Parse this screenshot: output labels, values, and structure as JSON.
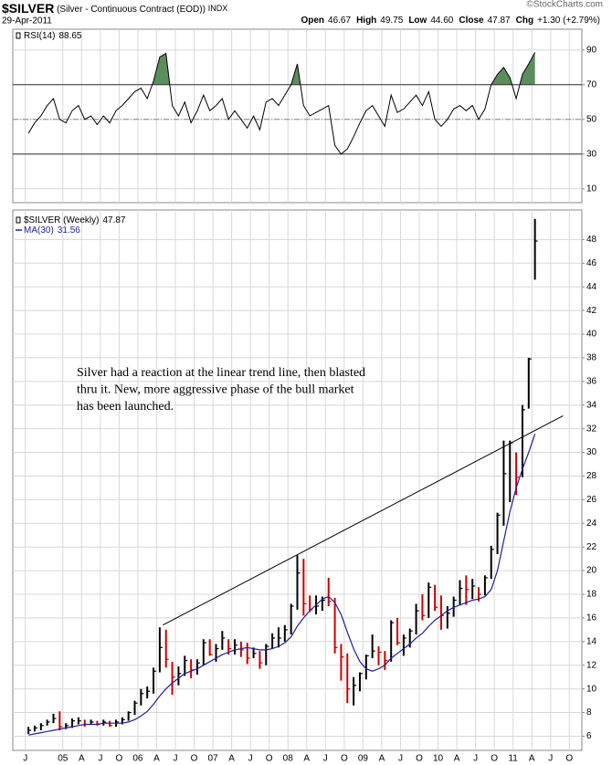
{
  "header": {
    "symbol": "$SILVER",
    "description": "(Silver - Continuous Contract (EOD))",
    "exchange": "INDX",
    "date": "29-Apr-2011",
    "watermark": "©StockCharts.com",
    "stats": [
      {
        "label": "Open",
        "value": "46.67"
      },
      {
        "label": "High",
        "value": "49.75"
      },
      {
        "label": "Low",
        "value": "44.60"
      },
      {
        "label": "Close",
        "value": "47.87"
      },
      {
        "label": "Chg",
        "value": "+1.30 (+2.79%)"
      }
    ]
  },
  "chart_data": [
    {
      "type": "line",
      "x": [
        "2004-07",
        "2004-08",
        "2004-09",
        "2004-10",
        "2004-11",
        "2004-12",
        "2005-01",
        "2005-02",
        "2005-03",
        "2005-04",
        "2005-05",
        "2005-06",
        "2005-07",
        "2005-08",
        "2005-09",
        "2005-10",
        "2005-11",
        "2005-12",
        "2006-01",
        "2006-02",
        "2006-03",
        "2006-04",
        "2006-05",
        "2006-06",
        "2006-07",
        "2006-08",
        "2006-09",
        "2006-10",
        "2006-11",
        "2006-12",
        "2007-01",
        "2007-02",
        "2007-03",
        "2007-04",
        "2007-05",
        "2007-06",
        "2007-07",
        "2007-08",
        "2007-09",
        "2007-10",
        "2007-11",
        "2007-12",
        "2008-01",
        "2008-02",
        "2008-03",
        "2008-04",
        "2008-05",
        "2008-06",
        "2008-07",
        "2008-08",
        "2008-09",
        "2008-10",
        "2008-11",
        "2008-12",
        "2009-01",
        "2009-02",
        "2009-03",
        "2009-04",
        "2009-05",
        "2009-06",
        "2009-07",
        "2009-08",
        "2009-09",
        "2009-10",
        "2009-11",
        "2009-12",
        "2010-01",
        "2010-02",
        "2010-03",
        "2010-04",
        "2010-05",
        "2010-06",
        "2010-07",
        "2010-08",
        "2010-09",
        "2010-10",
        "2010-11",
        "2010-12",
        "2011-01",
        "2011-02",
        "2011-03",
        "2011-04"
      ],
      "series": [
        {
          "name": "RSI(14)",
          "color": "#000000",
          "values": [
            42,
            48,
            52,
            58,
            62,
            50,
            48,
            55,
            58,
            50,
            52,
            47,
            52,
            48,
            55,
            58,
            62,
            66,
            68,
            62,
            72,
            86,
            88,
            58,
            52,
            60,
            48,
            55,
            64,
            55,
            58,
            62,
            50,
            55,
            50,
            45,
            52,
            44,
            60,
            62,
            58,
            64,
            70,
            82,
            58,
            52,
            54,
            56,
            58,
            35,
            30,
            33,
            40,
            48,
            55,
            58,
            52,
            46,
            64,
            54,
            56,
            60,
            64,
            58,
            66,
            50,
            46,
            50,
            56,
            58,
            55,
            58,
            50,
            56,
            70,
            76,
            80,
            74,
            62,
            76,
            82,
            88.65
          ]
        }
      ],
      "xlim": [
        "2004-05",
        "2011-12"
      ],
      "ylim": [
        2,
        102
      ],
      "yticks": [
        10,
        30,
        50,
        70,
        90
      ],
      "bands": {
        "upper": 70,
        "middle": 50,
        "lower": 30
      },
      "band_fill": "#5d8c5d",
      "grid": true
    },
    {
      "type": "ohlc",
      "x": [
        "2004-07",
        "2004-08",
        "2004-09",
        "2004-10",
        "2004-11",
        "2004-12",
        "2005-01",
        "2005-02",
        "2005-03",
        "2005-04",
        "2005-05",
        "2005-06",
        "2005-07",
        "2005-08",
        "2005-09",
        "2005-10",
        "2005-11",
        "2005-12",
        "2006-01",
        "2006-02",
        "2006-03",
        "2006-04",
        "2006-05",
        "2006-06",
        "2006-07",
        "2006-08",
        "2006-09",
        "2006-10",
        "2006-11",
        "2006-12",
        "2007-01",
        "2007-02",
        "2007-03",
        "2007-04",
        "2007-05",
        "2007-06",
        "2007-07",
        "2007-08",
        "2007-09",
        "2007-10",
        "2007-11",
        "2007-12",
        "2008-01",
        "2008-02",
        "2008-03",
        "2008-04",
        "2008-05",
        "2008-06",
        "2008-07",
        "2008-08",
        "2008-09",
        "2008-10",
        "2008-11",
        "2008-12",
        "2009-01",
        "2009-02",
        "2009-03",
        "2009-04",
        "2009-05",
        "2009-06",
        "2009-07",
        "2009-08",
        "2009-09",
        "2009-10",
        "2009-11",
        "2009-12",
        "2010-01",
        "2010-02",
        "2010-03",
        "2010-04",
        "2010-05",
        "2010-06",
        "2010-07",
        "2010-08",
        "2010-09",
        "2010-10",
        "2010-11",
        "2010-12",
        "2011-01",
        "2011-02",
        "2011-03",
        "2011-04"
      ],
      "series": [
        {
          "name": "$SILVER (Weekly)",
          "color": "#000000",
          "down_color": "#cc0000",
          "values": [
            6.5,
            6.7,
            6.9,
            7.2,
            7.5,
            6.8,
            6.9,
            7.3,
            7.3,
            7.0,
            7.2,
            7.0,
            7.2,
            6.9,
            7.2,
            7.4,
            8.0,
            8.8,
            9.6,
            9.8,
            11.5,
            13.5,
            12.5,
            11.0,
            11.3,
            12.4,
            11.6,
            12.2,
            13.9,
            12.9,
            13.4,
            14.3,
            13.4,
            13.7,
            13.3,
            12.6,
            13.0,
            12.2,
            13.6,
            14.3,
            14.3,
            15.0,
            17.0,
            19.8,
            17.2,
            16.7,
            17.0,
            17.5,
            17.4,
            13.5,
            12.7,
            10.0,
            10.3,
            11.3,
            12.8,
            13.2,
            13.1,
            12.4,
            15.6,
            13.9,
            14.3,
            14.9,
            16.6,
            16.2,
            18.6,
            16.9,
            16.2,
            16.4,
            17.5,
            18.5,
            18.4,
            18.7,
            18.0,
            19.4,
            21.8,
            24.7,
            28.2,
            30.8,
            27.9,
            33.6,
            37.9,
            47.87
          ],
          "high": [
            6.8,
            6.9,
            7.1,
            7.4,
            7.9,
            8.1,
            7.1,
            7.5,
            7.6,
            7.4,
            7.4,
            7.3,
            7.4,
            7.3,
            7.4,
            7.6,
            8.1,
            9.0,
            10.0,
            10.2,
            11.8,
            15.2,
            15.0,
            12.3,
            11.9,
            12.8,
            12.5,
            12.5,
            14.2,
            14.2,
            13.8,
            14.9,
            14.2,
            14.2,
            14.0,
            13.9,
            13.5,
            13.2,
            13.8,
            14.7,
            15.2,
            15.4,
            17.2,
            21.3,
            21.0,
            17.9,
            17.9,
            17.8,
            19.4,
            17.7,
            13.8,
            13.0,
            11.0,
            11.4,
            12.9,
            14.6,
            13.6,
            13.2,
            15.8,
            16.0,
            14.6,
            15.1,
            17.2,
            18.0,
            19.0,
            18.8,
            17.9,
            17.0,
            17.8,
            19.2,
            19.6,
            19.3,
            18.6,
            19.6,
            22.1,
            24.9,
            31.0,
            31.0,
            30.0,
            34.0,
            38.0,
            49.75
          ],
          "low": [
            6.2,
            6.4,
            6.5,
            6.9,
            7.1,
            6.5,
            6.6,
            6.7,
            7.0,
            6.8,
            7.0,
            6.9,
            6.9,
            6.8,
            6.8,
            7.0,
            7.3,
            7.8,
            8.6,
            9.2,
            9.6,
            11.4,
            11.8,
            9.5,
            10.3,
            11.1,
            10.9,
            11.2,
            12.0,
            12.8,
            12.3,
            13.3,
            12.9,
            12.9,
            12.7,
            12.1,
            12.6,
            11.7,
            12.0,
            13.4,
            13.5,
            14.0,
            14.6,
            16.7,
            16.2,
            16.5,
            16.3,
            16.6,
            17.0,
            13.0,
            10.7,
            8.8,
            8.6,
            9.8,
            10.8,
            12.6,
            12.0,
            11.6,
            12.3,
            13.7,
            12.8,
            13.5,
            14.6,
            15.8,
            16.0,
            16.6,
            15.0,
            15.1,
            16.1,
            17.1,
            17.1,
            17.6,
            17.4,
            17.9,
            19.3,
            21.4,
            23.8,
            25.8,
            26.4,
            27.9,
            33.7,
            44.6
          ]
        },
        {
          "name": "MA(30)",
          "color": "#1f1f9e",
          "values": [
            6.1,
            6.2,
            6.3,
            6.4,
            6.5,
            6.6,
            6.7,
            6.8,
            6.9,
            7.0,
            7.0,
            7.0,
            7.1,
            7.1,
            7.1,
            7.1,
            7.2,
            7.4,
            7.7,
            8.1,
            8.7,
            9.4,
            10.0,
            10.5,
            10.9,
            11.3,
            11.5,
            11.7,
            12.0,
            12.3,
            12.6,
            12.9,
            13.1,
            13.3,
            13.4,
            13.5,
            13.4,
            13.3,
            13.3,
            13.4,
            13.6,
            13.9,
            14.4,
            15.3,
            16.0,
            16.6,
            17.1,
            17.6,
            17.8,
            17.3,
            16.3,
            14.8,
            13.4,
            12.3,
            11.7,
            11.5,
            11.7,
            12.0,
            12.6,
            13.0,
            13.4,
            13.8,
            14.3,
            14.7,
            15.3,
            15.8,
            16.2,
            16.6,
            16.9,
            17.1,
            17.3,
            17.5,
            17.6,
            17.8,
            18.4,
            20.0,
            22.5,
            25.0,
            27.0,
            28.6,
            30.0,
            31.56
          ]
        }
      ],
      "xlim": [
        "2004-05",
        "2011-12"
      ],
      "ylim": [
        4.8,
        50.5
      ],
      "yticks": [
        6,
        8,
        10,
        12,
        14,
        16,
        18,
        20,
        22,
        24,
        26,
        28,
        30,
        32,
        34,
        36,
        38,
        40,
        42,
        44,
        46,
        48
      ],
      "xticks": [
        {
          "value": "2004-07",
          "label": "J"
        },
        {
          "value": "2005-01",
          "label": "05"
        },
        {
          "value": "2005-04",
          "label": "A"
        },
        {
          "value": "2005-07",
          "label": "J"
        },
        {
          "value": "2005-10",
          "label": "O"
        },
        {
          "value": "2006-01",
          "label": "06"
        },
        {
          "value": "2006-04",
          "label": "A"
        },
        {
          "value": "2006-07",
          "label": "J"
        },
        {
          "value": "2006-10",
          "label": "O"
        },
        {
          "value": "2007-01",
          "label": "07"
        },
        {
          "value": "2007-04",
          "label": "A"
        },
        {
          "value": "2007-07",
          "label": "J"
        },
        {
          "value": "2007-10",
          "label": "O"
        },
        {
          "value": "2008-01",
          "label": "08"
        },
        {
          "value": "2008-04",
          "label": "A"
        },
        {
          "value": "2008-07",
          "label": "J"
        },
        {
          "value": "2008-10",
          "label": "O"
        },
        {
          "value": "2009-01",
          "label": "09"
        },
        {
          "value": "2009-04",
          "label": "A"
        },
        {
          "value": "2009-07",
          "label": "J"
        },
        {
          "value": "2009-10",
          "label": "O"
        },
        {
          "value": "2010-01",
          "label": "10"
        },
        {
          "value": "2010-04",
          "label": "A"
        },
        {
          "value": "2010-07",
          "label": "J"
        },
        {
          "value": "2010-10",
          "label": "O"
        },
        {
          "value": "2011-01",
          "label": "11"
        },
        {
          "value": "2011-04",
          "label": "A"
        },
        {
          "value": "2011-07",
          "label": "J"
        },
        {
          "value": "2011-10",
          "label": "O"
        }
      ],
      "trendline": {
        "x": [
          "2006-05",
          "2011-09"
        ],
        "y": [
          15.4,
          33.1
        ],
        "color": "#000000"
      },
      "annotation": [
        "Silver had a reaction at the linear trend line, then blasted",
        "thru it. New, more aggressive phase of the bull market",
        "has been launched."
      ],
      "grid": true
    }
  ]
}
